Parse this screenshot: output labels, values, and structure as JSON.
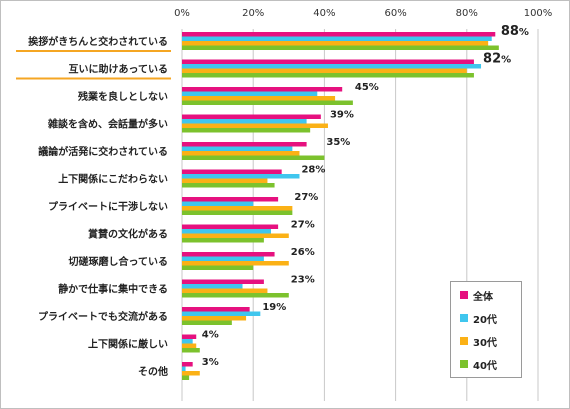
{
  "chart_data": {
    "type": "bar",
    "orientation": "horizontal",
    "xlim": [
      0,
      100
    ],
    "x_ticks": [
      "0%",
      "20%",
      "40%",
      "60%",
      "80%",
      "100%"
    ],
    "grid": true,
    "legend_position": "bottom-right",
    "categories": [
      "挨拶がきちんと交わされている",
      "互いに助けあっている",
      "残業を良しとしない",
      "雑談を含め、会話量が多い",
      "議論が活発に交わされている",
      "上下関係にこだわらない",
      "プライベートに干渉しない",
      "賞賛の文化がある",
      "切磋琢磨し合っている",
      "静かで仕事に集中できる",
      "プライベートでも交流がある",
      "上下関係に厳しい",
      "その他"
    ],
    "highlighted_categories": [
      0,
      1
    ],
    "highlight_color": "#f5a623",
    "data_labels": [
      "88%",
      "82%",
      "45%",
      "39%",
      "35%",
      "28%",
      "27%",
      "27%",
      "26%",
      "23%",
      "19%",
      "4%",
      "3%"
    ],
    "series": [
      {
        "name": "全体",
        "color": "#e6117f",
        "values": [
          88,
          82,
          45,
          39,
          35,
          28,
          27,
          27,
          26,
          23,
          19,
          4,
          3
        ]
      },
      {
        "name": "20代",
        "color": "#3fc6ee",
        "values": [
          87,
          84,
          38,
          35,
          31,
          33,
          20,
          25,
          23,
          17,
          22,
          3,
          1
        ]
      },
      {
        "name": "30代",
        "color": "#fbb116",
        "values": [
          86,
          80,
          43,
          41,
          33,
          24,
          31,
          30,
          30,
          24,
          18,
          4,
          5
        ]
      },
      {
        "name": "40代",
        "color": "#7cc22d",
        "values": [
          89,
          82,
          48,
          36,
          40,
          26,
          31,
          23,
          20,
          30,
          14,
          5,
          2
        ]
      }
    ]
  }
}
